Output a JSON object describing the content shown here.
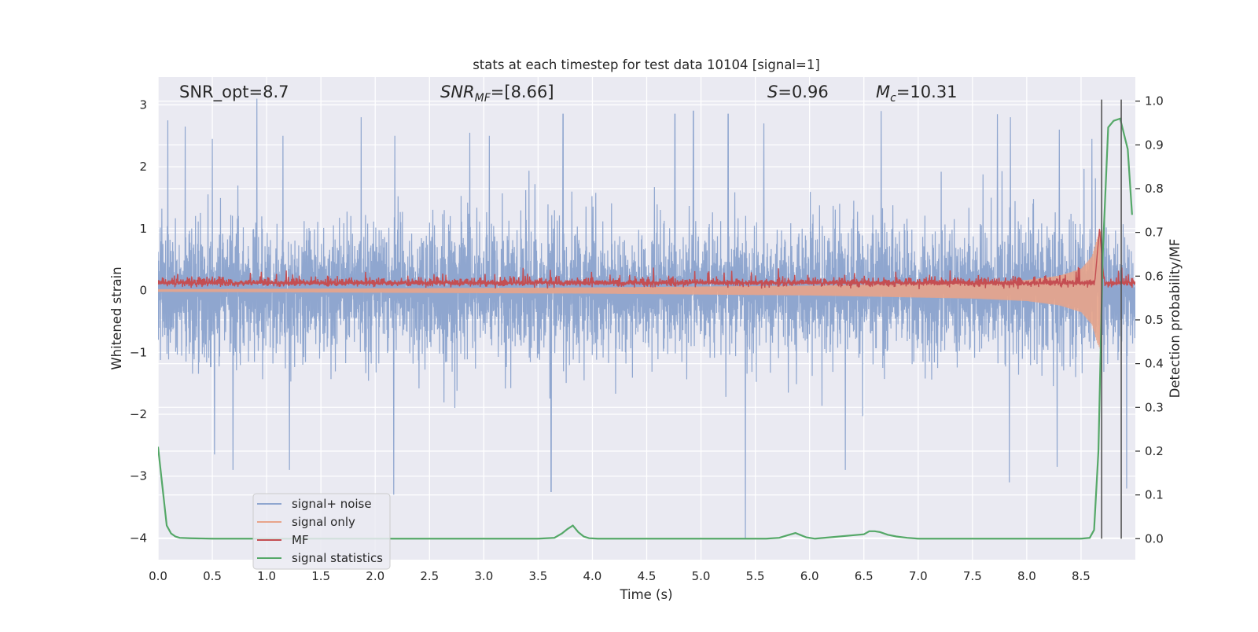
{
  "chart_data": {
    "type": "line",
    "title": "stats at each timestep for test data 10104 [signal=1]",
    "xlabel": "Time (s)",
    "ylabel_left": "Whitened strain",
    "ylabel_right": "Detection probability/MF",
    "xlim": [
      0,
      9
    ],
    "ylim_left": [
      -4.35,
      3.45
    ],
    "ylim_right": [
      -0.048,
      1.055
    ],
    "x_ticks": [
      "0.0",
      "0.5",
      "1.0",
      "1.5",
      "2.0",
      "2.5",
      "3.0",
      "3.5",
      "4.0",
      "4.5",
      "5.0",
      "5.5",
      "6.0",
      "6.5",
      "7.0",
      "7.5",
      "8.0",
      "8.5"
    ],
    "y_ticks_left": [
      "−4",
      "−3",
      "−2",
      "−1",
      "0",
      "1",
      "2",
      "3"
    ],
    "y_ticks_right": [
      "0.0",
      "0.1",
      "0.2",
      "0.3",
      "0.4",
      "0.5",
      "0.6",
      "0.7",
      "0.8",
      "0.9",
      "1.0"
    ],
    "grid": true,
    "legend_position": "lower-left",
    "annotations": {
      "snr_opt": "SNR_opt=8.7",
      "snr_mf_main": "SNR",
      "snr_mf_sub": "MF",
      "snr_mf_tail": "=[8.66]",
      "s_main": "S",
      "s_tail": "=0.96",
      "mc_main": "M",
      "mc_sub": "c",
      "mc_tail": "=10.31"
    },
    "vlines_x": [
      8.69,
      8.87
    ],
    "colors": {
      "background": "#eaeaf2",
      "grid": "#ffffff",
      "signal_noise": "#8fa6cf",
      "signal_only": "#e8a48a",
      "mf": "#c44e52",
      "signal_statistics": "#55a868",
      "vline": "#555555"
    },
    "series": [
      {
        "name": "signal+ noise",
        "axis": "left",
        "kind": "noisy-band",
        "envelope_typical": [
          -1.7,
          1.6
        ],
        "peaks_up": [
          [
            0.09,
            2.75
          ],
          [
            0.25,
            2.65
          ],
          [
            0.5,
            2.45
          ],
          [
            0.91,
            3.1
          ],
          [
            1.15,
            2.5
          ],
          [
            1.87,
            2.8
          ],
          [
            2.18,
            2.5
          ],
          [
            2.87,
            2.55
          ],
          [
            3.05,
            2.5
          ],
          [
            3.73,
            2.85
          ],
          [
            4.76,
            2.85
          ],
          [
            4.93,
            2.9
          ],
          [
            5.25,
            2.85
          ],
          [
            5.58,
            2.7
          ],
          [
            6.66,
            2.9
          ],
          [
            7.73,
            2.85
          ],
          [
            7.85,
            2.8
          ],
          [
            8.3,
            2.6
          ],
          [
            8.6,
            2.45
          ]
        ],
        "peaks_down": [
          [
            0.52,
            -2.65
          ],
          [
            0.69,
            -2.9
          ],
          [
            1.21,
            -2.9
          ],
          [
            2.17,
            -3.3
          ],
          [
            3.62,
            -3.25
          ],
          [
            5.41,
            -4.0
          ],
          [
            6.33,
            -2.9
          ],
          [
            7.84,
            -3.1
          ],
          [
            8.28,
            -2.85
          ],
          [
            8.92,
            -3.2
          ]
        ]
      },
      {
        "name": "signal only",
        "axis": "left",
        "kind": "chirp",
        "envelope_x": [
          0.0,
          4.0,
          6.0,
          7.5,
          8.0,
          8.3,
          8.5,
          8.6,
          8.65,
          8.69
        ],
        "envelope_amp": [
          0.02,
          0.05,
          0.08,
          0.13,
          0.17,
          0.24,
          0.35,
          0.55,
          0.85,
          1.0
        ]
      },
      {
        "name": "MF",
        "axis": "left",
        "kind": "noisy-line",
        "baseline": 0.12,
        "spike": [
          8.67,
          1.0
        ]
      },
      {
        "name": "signal statistics",
        "axis": "right",
        "kind": "line",
        "x": [
          0.0,
          0.04,
          0.08,
          0.12,
          0.16,
          0.2,
          0.3,
          0.5,
          1.0,
          2.0,
          3.0,
          3.5,
          3.65,
          3.72,
          3.77,
          3.82,
          3.87,
          3.92,
          3.97,
          4.05,
          4.3,
          5.0,
          5.6,
          5.72,
          5.8,
          5.87,
          5.92,
          5.97,
          6.05,
          6.5,
          6.55,
          6.6,
          6.65,
          6.72,
          6.8,
          6.9,
          7.0,
          7.5,
          8.0,
          8.5,
          8.58,
          8.62,
          8.66,
          8.7,
          8.75,
          8.8,
          8.86,
          8.93,
          8.97
        ],
        "y": [
          0.21,
          0.12,
          0.03,
          0.012,
          0.005,
          0.002,
          0.001,
          0.0,
          0.0,
          0.0,
          0.0,
          0.0,
          0.002,
          0.012,
          0.022,
          0.03,
          0.015,
          0.005,
          0.001,
          0.0,
          0.0,
          0.0,
          0.0,
          0.002,
          0.008,
          0.013,
          0.008,
          0.003,
          0.0,
          0.01,
          0.017,
          0.017,
          0.015,
          0.009,
          0.005,
          0.002,
          0.0,
          0.0,
          0.0,
          0.0,
          0.002,
          0.02,
          0.2,
          0.65,
          0.94,
          0.955,
          0.96,
          0.89,
          0.74
        ]
      }
    ]
  }
}
